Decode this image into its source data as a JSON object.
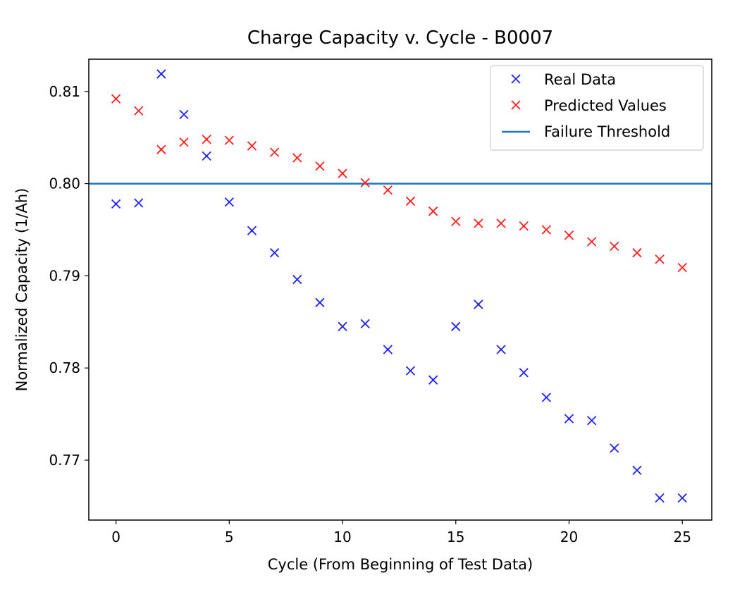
{
  "chart_data": {
    "type": "scatter",
    "title": "Charge Capacity v. Cycle - B0007",
    "xlabel": "Cycle (From Beginning of Test Data)",
    "ylabel": "Normalized Capacity (1/Ah)",
    "xlim": [
      -1.2,
      26.3
    ],
    "ylim": [
      0.7635,
      0.8135
    ],
    "xticks": [
      0,
      5,
      10,
      15,
      20,
      25
    ],
    "yticks": [
      0.77,
      0.78,
      0.79,
      0.8,
      0.81
    ],
    "ytick_labels": [
      "0.77",
      "0.78",
      "0.79",
      "0.80",
      "0.81"
    ],
    "legend_position": "upper right",
    "grid": false,
    "series": [
      {
        "name": "Real Data",
        "marker": "x",
        "color": "#1f1fff",
        "x": [
          0,
          1,
          2,
          3,
          4,
          5,
          6,
          7,
          8,
          9,
          10,
          11,
          12,
          13,
          14,
          15,
          16,
          17,
          18,
          19,
          20,
          21,
          22,
          23,
          24,
          25
        ],
        "y": [
          0.7978,
          0.7979,
          0.8119,
          0.8075,
          0.803,
          0.798,
          0.7949,
          0.7925,
          0.7896,
          0.7871,
          0.7845,
          0.7848,
          0.782,
          0.7797,
          0.7787,
          0.7845,
          0.7869,
          0.782,
          0.7795,
          0.7768,
          0.7745,
          0.7743,
          0.7713,
          0.7689,
          0.7659,
          0.7659
        ]
      },
      {
        "name": "Predicted Values",
        "marker": "x",
        "color": "#ff1f1f",
        "x": [
          0,
          1,
          2,
          3,
          4,
          5,
          6,
          7,
          8,
          9,
          10,
          11,
          12,
          13,
          14,
          15,
          16,
          17,
          18,
          19,
          20,
          21,
          22,
          23,
          24,
          25
        ],
        "y": [
          0.8092,
          0.8079,
          0.8037,
          0.8045,
          0.8048,
          0.8047,
          0.8041,
          0.8034,
          0.8028,
          0.8019,
          0.8011,
          0.8001,
          0.7993,
          0.7981,
          0.797,
          0.7959,
          0.7957,
          0.7957,
          0.7954,
          0.795,
          0.7944,
          0.7937,
          0.7932,
          0.7925,
          0.7918,
          0.7909
        ]
      }
    ],
    "threshold": {
      "name": "Failure Threshold",
      "y": 0.8,
      "color": "#1f77b4"
    }
  }
}
